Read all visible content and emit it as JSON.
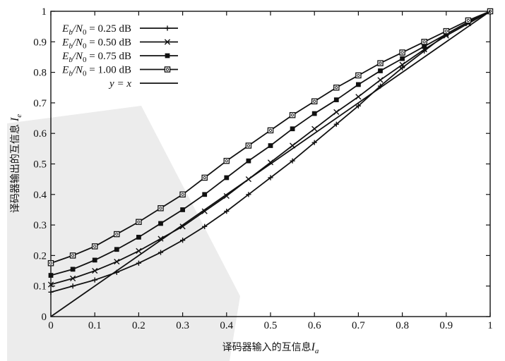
{
  "chart_data": {
    "type": "line",
    "xlabel": "译码器输入的互信息",
    "xlabel_var": "I",
    "xlabel_sub": "a",
    "ylabel": "译码器输出的互信息",
    "ylabel_var": "I",
    "ylabel_sub": "e",
    "xlim": [
      0,
      1
    ],
    "ylim": [
      0,
      1
    ],
    "xticks": [
      "0",
      "0.1",
      "0.2",
      "0.3",
      "0.4",
      "0.5",
      "0.6",
      "0.7",
      "0.8",
      "0.9",
      "1"
    ],
    "yticks": [
      "0",
      "0.1",
      "0.2",
      "0.3",
      "0.4",
      "0.5",
      "0.6",
      "0.7",
      "0.8",
      "0.9",
      "1"
    ],
    "grid": false,
    "legend_position": "top-left",
    "colors": {
      "line": "#111111",
      "axis": "#111111"
    },
    "series": [
      {
        "name": "Eb/N0 = 0.25 dB",
        "legend_parts": [
          "E",
          "b",
          "/N",
          "0",
          " = 0.25 dB"
        ],
        "marker": "plus",
        "x": [
          0,
          0.05,
          0.1,
          0.15,
          0.2,
          0.25,
          0.3,
          0.35,
          0.4,
          0.45,
          0.5,
          0.55,
          0.6,
          0.65,
          0.7,
          0.75,
          0.8,
          0.85,
          0.9,
          0.95,
          1.0
        ],
        "y": [
          0.08,
          0.1,
          0.12,
          0.145,
          0.175,
          0.21,
          0.25,
          0.295,
          0.345,
          0.4,
          0.455,
          0.51,
          0.57,
          0.63,
          0.69,
          0.755,
          0.815,
          0.87,
          0.925,
          0.965,
          1.0
        ]
      },
      {
        "name": "Eb/N0 = 0.50 dB",
        "legend_parts": [
          "E",
          "b",
          "/N",
          "0",
          " = 0.50 dB"
        ],
        "marker": "x",
        "x": [
          0,
          0.05,
          0.1,
          0.15,
          0.2,
          0.25,
          0.3,
          0.35,
          0.4,
          0.45,
          0.5,
          0.55,
          0.6,
          0.65,
          0.7,
          0.75,
          0.8,
          0.85,
          0.9,
          0.95,
          1.0
        ],
        "y": [
          0.105,
          0.125,
          0.15,
          0.18,
          0.215,
          0.255,
          0.295,
          0.345,
          0.395,
          0.45,
          0.505,
          0.56,
          0.615,
          0.67,
          0.72,
          0.775,
          0.825,
          0.875,
          0.92,
          0.96,
          1.0
        ]
      },
      {
        "name": "Eb/N0 = 0.75 dB",
        "legend_parts": [
          "E",
          "b",
          "/N",
          "0",
          " = 0.75 dB"
        ],
        "marker": "square-filled",
        "x": [
          0,
          0.05,
          0.1,
          0.15,
          0.2,
          0.25,
          0.3,
          0.35,
          0.4,
          0.45,
          0.5,
          0.55,
          0.6,
          0.65,
          0.7,
          0.75,
          0.8,
          0.85,
          0.9,
          0.95,
          1.0
        ],
        "y": [
          0.135,
          0.155,
          0.185,
          0.22,
          0.26,
          0.305,
          0.35,
          0.4,
          0.455,
          0.51,
          0.56,
          0.615,
          0.665,
          0.71,
          0.76,
          0.805,
          0.845,
          0.885,
          0.925,
          0.965,
          1.0
        ]
      },
      {
        "name": "Eb/N0 = 1.00 dB",
        "legend_parts": [
          "E",
          "b",
          "/N",
          "0",
          " = 1.00 dB"
        ],
        "marker": "square-open",
        "x": [
          0,
          0.05,
          0.1,
          0.15,
          0.2,
          0.25,
          0.3,
          0.35,
          0.4,
          0.45,
          0.5,
          0.55,
          0.6,
          0.65,
          0.7,
          0.75,
          0.8,
          0.85,
          0.9,
          0.95,
          1.0
        ],
        "y": [
          0.175,
          0.2,
          0.23,
          0.27,
          0.31,
          0.355,
          0.4,
          0.455,
          0.51,
          0.56,
          0.61,
          0.66,
          0.705,
          0.75,
          0.79,
          0.83,
          0.865,
          0.9,
          0.935,
          0.97,
          1.0
        ]
      },
      {
        "name": "y = x",
        "legend_parts": [
          "y",
          "",
          " = ",
          "",
          "x"
        ],
        "marker": "none",
        "x": [
          0,
          1
        ],
        "y": [
          0,
          1
        ]
      }
    ]
  }
}
